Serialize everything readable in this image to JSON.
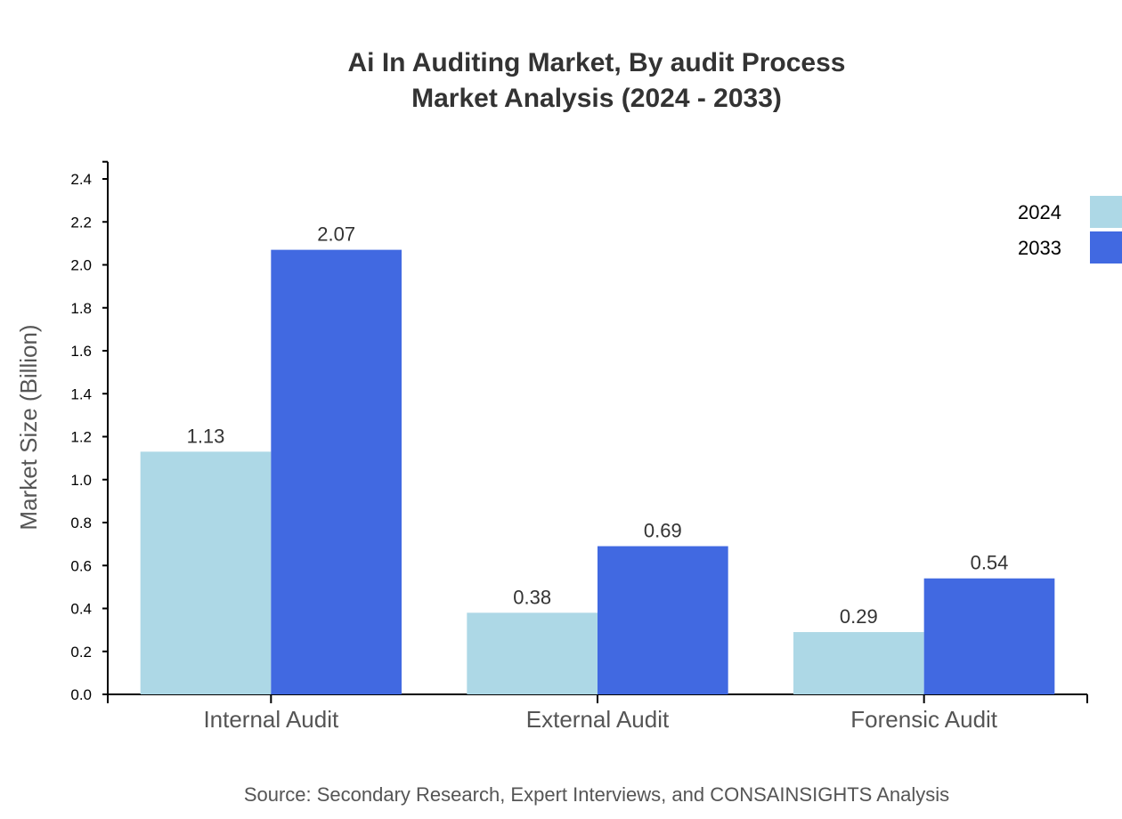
{
  "chart_data": {
    "type": "bar",
    "title_lines": [
      "Ai In Auditing Market, By audit Process",
      "Market Analysis (2024 - 2033)"
    ],
    "xlabel": "",
    "ylabel": "Market Size (Billion)",
    "categories": [
      "Internal Audit",
      "External Audit",
      "Forensic Audit"
    ],
    "series": [
      {
        "name": "2024",
        "color": "#ADD8E6",
        "values": [
          1.13,
          0.38,
          0.29
        ],
        "labels": [
          "1.13",
          "0.38",
          "0.29"
        ]
      },
      {
        "name": "2033",
        "color": "#4169E1",
        "values": [
          2.07,
          0.69,
          0.54
        ],
        "labels": [
          "2.07",
          "0.69",
          "0.54"
        ]
      }
    ],
    "ylim": [
      0,
      2.48
    ],
    "yticks": [
      "0.0",
      "0.2",
      "0.4",
      "0.6",
      "0.8",
      "1.0",
      "1.2",
      "1.4",
      "1.6",
      "1.8",
      "2.0",
      "2.2",
      "2.4"
    ],
    "grid": false,
    "legend_position": "top-right",
    "source": "Source: Secondary Research, Expert Interviews, and CONSAINSIGHTS Analysis"
  }
}
